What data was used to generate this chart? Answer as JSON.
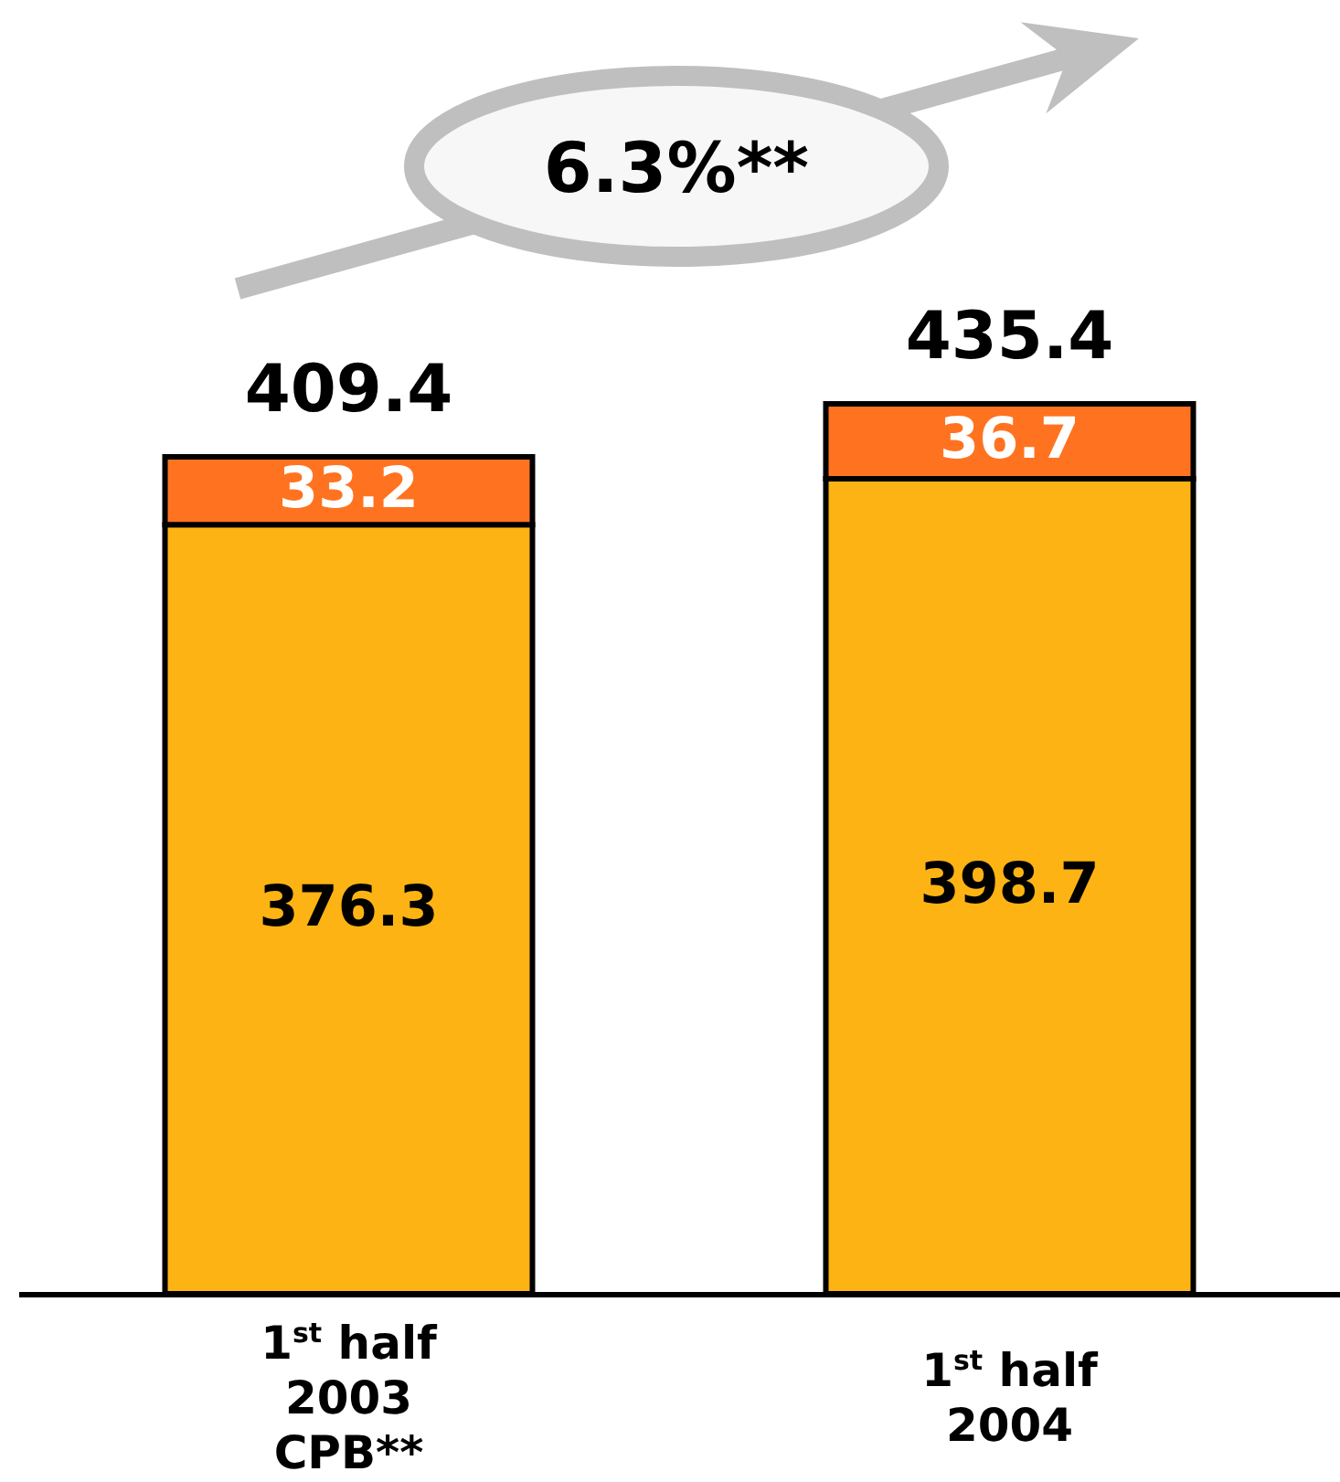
{
  "chart_data": {
    "type": "bar",
    "stacked": true,
    "categories": [
      "1$^{st}$ half\n2003\nCPB**",
      "1$^{st}$ half\n2004"
    ],
    "series": [
      {
        "color": "#fdb313",
        "values": [
          376.3,
          398.7
        ]
      },
      {
        "color": "#ff7320",
        "values": [
          33.2,
          36.7
        ]
      }
    ],
    "data_labels": true,
    "totals": [
      "409.4",
      "435.4"
    ],
    "annotations": [
      "6.3%**"
    ]
  }
}
